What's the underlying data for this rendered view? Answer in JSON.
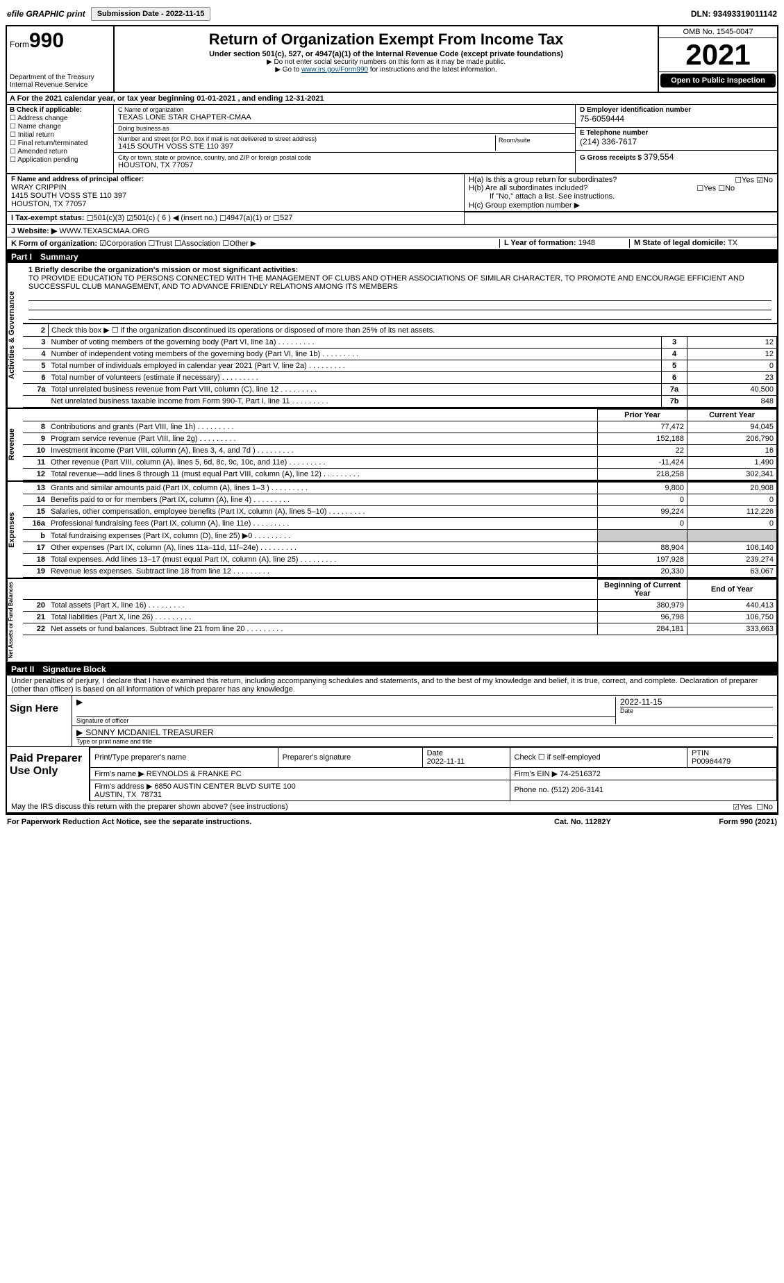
{
  "topbar": {
    "efile": "efile GRAPHIC print",
    "submission_label": "Submission Date - 2022-11-15",
    "dln": "DLN: 93493319011142"
  },
  "header": {
    "form_word": "Form",
    "form_num": "990",
    "dept": "Department of the Treasury\nInternal Revenue Service",
    "title": "Return of Organization Exempt From Income Tax",
    "subtitle": "Under section 501(c), 527, or 4947(a)(1) of the Internal Revenue Code (except private foundations)",
    "note1": "▶ Do not enter social security numbers on this form as it may be made public.",
    "note2": "▶ Go to www.irs.gov/Form990 for instructions and the latest information.",
    "link": "www.irs.gov/Form990",
    "omb": "OMB No. 1545-0047",
    "year": "2021",
    "open": "Open to Public Inspection"
  },
  "period": "A For the 2021 calendar year, or tax year beginning 01-01-2021   , and ending 12-31-2021",
  "box_b": {
    "hdr": "B Check if applicable:",
    "opts": [
      "Address change",
      "Name change",
      "Initial return",
      "Final return/terminated",
      "Amended return",
      "Application pending"
    ]
  },
  "box_c": {
    "name_lbl": "C Name of organization",
    "name": "TEXAS LONE STAR CHAPTER-CMAA",
    "dba_lbl": "Doing business as",
    "dba": "",
    "street_lbl": "Number and street (or P.O. box if mail is not delivered to street address)",
    "room_lbl": "Room/suite",
    "street": "1415 SOUTH VOSS STE 110 397",
    "city_lbl": "City or town, state or province, country, and ZIP or foreign postal code",
    "city": "HOUSTON, TX  77057"
  },
  "box_d": {
    "ein_lbl": "D Employer identification number",
    "ein": "75-6059444",
    "tel_lbl": "E Telephone number",
    "tel": "(214) 336-7617",
    "gross_lbl": "G Gross receipts $",
    "gross": "379,554"
  },
  "box_f": {
    "lbl": "F Name and address of principal officer:",
    "name": "WRAY CRIPPIN",
    "addr1": "1415 SOUTH VOSS STE 110 397",
    "addr2": "HOUSTON, TX  77057"
  },
  "box_h": {
    "a": "H(a)  Is this a group return for subordinates?",
    "b": "H(b)  Are all subordinates included?",
    "b_note": "If \"No,\" attach a list. See instructions.",
    "c": "H(c)  Group exemption number ▶",
    "yes": "Yes",
    "no": "No"
  },
  "row_i": {
    "lbl": "I  Tax-exempt status:",
    "o1": "501(c)(3)",
    "o2": "501(c) ( 6 ) ◀ (insert no.)",
    "o3": "4947(a)(1) or",
    "o4": "527"
  },
  "row_j": {
    "lbl": "J  Website: ▶",
    "val": "WWW.TEXASCMAA.ORG"
  },
  "row_k": {
    "lbl": "K Form of organization:",
    "o1": "Corporation",
    "o2": "Trust",
    "o3": "Association",
    "o4": "Other ▶"
  },
  "row_l": {
    "lbl": "L Year of formation:",
    "val": "1948"
  },
  "row_m": {
    "lbl": "M State of legal domicile:",
    "val": "TX"
  },
  "part1": {
    "hdr": "Part I",
    "title": "Summary"
  },
  "mission": {
    "prompt": "1  Briefly describe the organization's mission or most significant activities:",
    "text": "TO PROVIDE EDUCATION TO PERSONS CONNECTED WITH THE MANAGEMENT OF CLUBS AND OTHER ASSOCIATIONS OF SIMILAR CHARACTER, TO PROMOTE AND ENCOURAGE EFFICIENT AND SUCCESSFUL CLUB MANAGEMENT, AND TO ADVANCE FRIENDLY RELATIONS AMONG ITS MEMBERS"
  },
  "gov_rows": [
    {
      "n": "2",
      "t": "Check this box ▶ ☐ if the organization discontinued its operations or disposed of more than 25% of its net assets.",
      "idx": "",
      "v": ""
    },
    {
      "n": "3",
      "t": "Number of voting members of the governing body (Part VI, line 1a)",
      "idx": "3",
      "v": "12"
    },
    {
      "n": "4",
      "t": "Number of independent voting members of the governing body (Part VI, line 1b)",
      "idx": "4",
      "v": "12"
    },
    {
      "n": "5",
      "t": "Total number of individuals employed in calendar year 2021 (Part V, line 2a)",
      "idx": "5",
      "v": "0"
    },
    {
      "n": "6",
      "t": "Total number of volunteers (estimate if necessary)",
      "idx": "6",
      "v": "23"
    },
    {
      "n": "7a",
      "t": "Total unrelated business revenue from Part VIII, column (C), line 12",
      "idx": "7a",
      "v": "40,500"
    },
    {
      "n": "",
      "t": "Net unrelated business taxable income from Form 990-T, Part I, line 11",
      "idx": "7b",
      "v": "848"
    }
  ],
  "col_hdr": {
    "prior": "Prior Year",
    "current": "Current Year"
  },
  "revenue": [
    {
      "n": "8",
      "t": "Contributions and grants (Part VIII, line 1h)",
      "p": "77,472",
      "c": "94,045"
    },
    {
      "n": "9",
      "t": "Program service revenue (Part VIII, line 2g)",
      "p": "152,188",
      "c": "206,790"
    },
    {
      "n": "10",
      "t": "Investment income (Part VIII, column (A), lines 3, 4, and 7d )",
      "p": "22",
      "c": "16"
    },
    {
      "n": "11",
      "t": "Other revenue (Part VIII, column (A), lines 5, 6d, 8c, 9c, 10c, and 11e)",
      "p": "-11,424",
      "c": "1,490"
    },
    {
      "n": "12",
      "t": "Total revenue—add lines 8 through 11 (must equal Part VIII, column (A), line 12)",
      "p": "218,258",
      "c": "302,341"
    }
  ],
  "expenses": [
    {
      "n": "13",
      "t": "Grants and similar amounts paid (Part IX, column (A), lines 1–3 )",
      "p": "9,800",
      "c": "20,908"
    },
    {
      "n": "14",
      "t": "Benefits paid to or for members (Part IX, column (A), line 4)",
      "p": "0",
      "c": "0"
    },
    {
      "n": "15",
      "t": "Salaries, other compensation, employee benefits (Part IX, column (A), lines 5–10)",
      "p": "99,224",
      "c": "112,226"
    },
    {
      "n": "16a",
      "t": "Professional fundraising fees (Part IX, column (A), line 11e)",
      "p": "0",
      "c": "0"
    },
    {
      "n": "b",
      "t": "Total fundraising expenses (Part IX, column (D), line 25) ▶0",
      "p": "",
      "c": "",
      "shade": true
    },
    {
      "n": "17",
      "t": "Other expenses (Part IX, column (A), lines 11a–11d, 11f–24e)",
      "p": "88,904",
      "c": "106,140"
    },
    {
      "n": "18",
      "t": "Total expenses. Add lines 13–17 (must equal Part IX, column (A), line 25)",
      "p": "197,928",
      "c": "239,274"
    },
    {
      "n": "19",
      "t": "Revenue less expenses. Subtract line 18 from line 12",
      "p": "20,330",
      "c": "63,067"
    }
  ],
  "net_hdr": {
    "b": "Beginning of Current Year",
    "e": "End of Year"
  },
  "net": [
    {
      "n": "20",
      "t": "Total assets (Part X, line 16)",
      "p": "380,979",
      "c": "440,413"
    },
    {
      "n": "21",
      "t": "Total liabilities (Part X, line 26)",
      "p": "96,798",
      "c": "106,750"
    },
    {
      "n": "22",
      "t": "Net assets or fund balances. Subtract line 21 from line 20",
      "p": "284,181",
      "c": "333,663"
    }
  ],
  "sidelabels": {
    "gov": "Activities & Governance",
    "rev": "Revenue",
    "exp": "Expenses",
    "net": "Net Assets or Fund Balances"
  },
  "part2": {
    "hdr": "Part II",
    "title": "Signature Block"
  },
  "sig_decl": "Under penalties of perjury, I declare that I have examined this return, including accompanying schedules and statements, and to the best of my knowledge and belief, it is true, correct, and complete. Declaration of preparer (other than officer) is based on all information of which preparer has any knowledge.",
  "sign": {
    "here": "Sign Here",
    "sig_of": "Signature of officer",
    "date": "2022-11-15",
    "date_lbl": "Date",
    "name": "SONNY MCDANIEL  TREASURER",
    "name_lbl": "Type or print name and title"
  },
  "paid": {
    "title": "Paid Preparer Use Only",
    "h1": "Print/Type preparer's name",
    "h2": "Preparer's signature",
    "h3": "Date",
    "h4": "Check ☐ if self-employed",
    "h5": "PTIN",
    "date": "2022-11-11",
    "ptin": "P00964479",
    "firm_lbl": "Firm's name    ▶",
    "firm": "REYNOLDS & FRANKE PC",
    "ein_lbl": "Firm's EIN ▶",
    "ein": "74-2516372",
    "addr_lbl": "Firm's address ▶",
    "addr": "6850 AUSTIN CENTER BLVD SUITE 100\nAUSTIN, TX  78731",
    "phone_lbl": "Phone no.",
    "phone": "(512) 206-3141"
  },
  "discuss": "May the IRS discuss this return with the preparer shown above? (see instructions)",
  "footer": {
    "l": "For Paperwork Reduction Act Notice, see the separate instructions.",
    "m": "Cat. No. 11282Y",
    "r": "Form 990 (2021)"
  }
}
